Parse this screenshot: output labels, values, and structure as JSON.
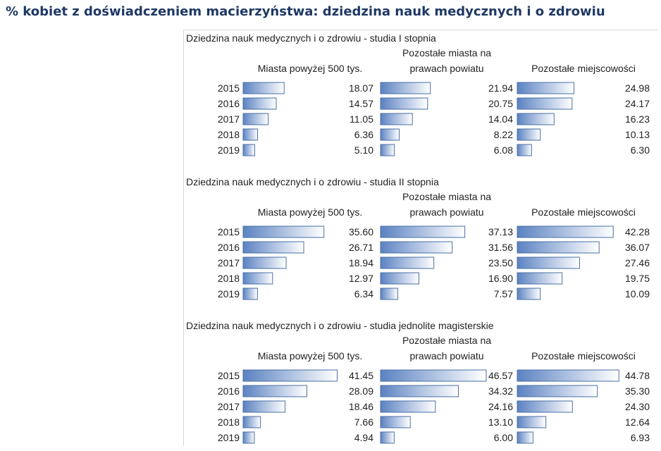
{
  "title": "% kobiet z doświadczeniem macierzyństwa: dziedzina nauk medycznych i o zdrowiu",
  "colors": {
    "title": "#1f3864",
    "bar_dark": "#5b82c2",
    "bar_light": "#ffffff",
    "bar_border": "#4a6fa5"
  },
  "chart_data": [
    {
      "type": "bar",
      "orientation": "horizontal",
      "title": "Dziedzina nauk medycznych i o zdrowiu - studia I stopnia",
      "categories": [
        "2015",
        "2016",
        "2017",
        "2018",
        "2019"
      ],
      "series": [
        {
          "name": "Miasta powyżej 500 tys.",
          "values": [
            18.07,
            14.57,
            11.05,
            6.36,
            5.1
          ],
          "labels": [
            "18.07",
            "14.57",
            "11.05",
            "6.36",
            "5.10"
          ]
        },
        {
          "name_lines": [
            "Pozostałe miasta na",
            "prawach powiatu"
          ],
          "values": [
            21.94,
            20.75,
            14.04,
            8.22,
            6.08
          ],
          "labels": [
            "21.94",
            "20.75",
            "14.04",
            "8.22",
            "6.08"
          ]
        },
        {
          "name": "Pozostałe miejscowości",
          "values": [
            24.98,
            24.17,
            16.23,
            10.13,
            6.3
          ],
          "labels": [
            "24.98",
            "24.17",
            "16.23",
            "10.13",
            "6.30"
          ]
        }
      ]
    },
    {
      "type": "bar",
      "orientation": "horizontal",
      "title": "Dziedzina nauk medycznych i o zdrowiu - studia II stopnia",
      "categories": [
        "2015",
        "2016",
        "2017",
        "2018",
        "2019"
      ],
      "series": [
        {
          "name": "Miasta powyżej 500 tys.",
          "values": [
            35.6,
            26.71,
            18.94,
            12.97,
            6.34
          ],
          "labels": [
            "35.60",
            "26.71",
            "18.94",
            "12.97",
            "6.34"
          ]
        },
        {
          "name_lines": [
            "Pozostałe miasta na",
            "prawach powiatu"
          ],
          "values": [
            37.13,
            31.56,
            23.5,
            16.9,
            7.57
          ],
          "labels": [
            "37.13",
            "31.56",
            "23.50",
            "16.90",
            "7.57"
          ]
        },
        {
          "name": "Pozostałe miejscowości",
          "values": [
            42.28,
            36.07,
            27.46,
            19.75,
            10.09
          ],
          "labels": [
            "42.28",
            "36.07",
            "27.46",
            "19.75",
            "10.09"
          ]
        }
      ]
    },
    {
      "type": "bar",
      "orientation": "horizontal",
      "title": "Dziedzina nauk medycznych i o zdrowiu - studia jednolite magisterskie",
      "categories": [
        "2015",
        "2016",
        "2017",
        "2018",
        "2019"
      ],
      "series": [
        {
          "name": "Miasta powyżej 500 tys.",
          "values": [
            41.45,
            28.09,
            18.46,
            7.66,
            4.94
          ],
          "labels": [
            "41.45",
            "28.09",
            "18.46",
            "7.66",
            "4.94"
          ]
        },
        {
          "name_lines": [
            "Pozostałe miasta na",
            "prawach powiatu"
          ],
          "values": [
            46.57,
            34.32,
            24.16,
            13.1,
            6.0
          ],
          "labels": [
            "46.57",
            "34.32",
            "24.16",
            "13.10",
            "6.00"
          ]
        },
        {
          "name": "Pozostałe miejscowości",
          "values": [
            44.78,
            35.3,
            24.3,
            12.64,
            6.93
          ],
          "labels": [
            "44.78",
            "35.30",
            "24.30",
            "12.64",
            "6.93"
          ]
        }
      ]
    }
  ]
}
